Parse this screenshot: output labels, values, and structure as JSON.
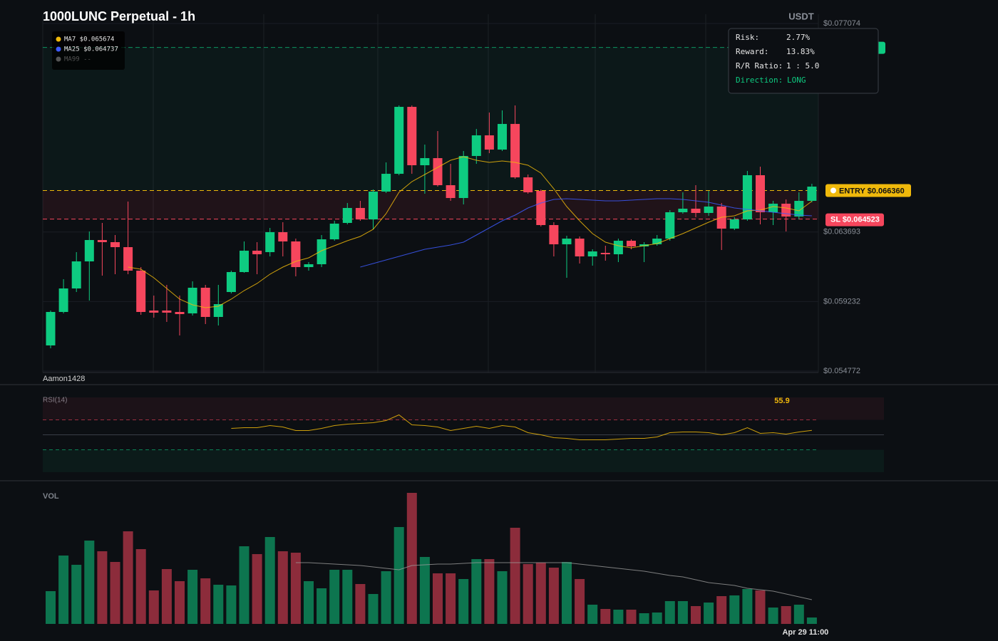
{
  "chart_data": [
    {
      "type": "candlestick",
      "title": "1000LUNC Perpetual - 1h",
      "currency": "USDT",
      "watermark": "Aamon1428",
      "categories": [
        null,
        null,
        null,
        null,
        null,
        null,
        null,
        null,
        null,
        null,
        null,
        null,
        null,
        null,
        null,
        null,
        null,
        null,
        null,
        null,
        null,
        null,
        null,
        null,
        null,
        null,
        null,
        null,
        null,
        null,
        null,
        null,
        null,
        null,
        null,
        null,
        null,
        null,
        null,
        null,
        null,
        null,
        null,
        null,
        null,
        null,
        null,
        null,
        null,
        null,
        null,
        null,
        null,
        null,
        null,
        null,
        null,
        null,
        null,
        "Apr 29 11:00"
      ],
      "open": [
        0.056417,
        0.058565,
        0.060073,
        0.06181,
        0.063181,
        0.063044,
        0.062724,
        0.061216,
        0.058657,
        0.058657,
        0.058565,
        0.058474,
        0.060119,
        0.058245,
        0.059845,
        0.061125,
        0.062496,
        0.062404,
        0.063684,
        0.06309,
        0.061444,
        0.061627,
        0.063227,
        0.064278,
        0.065238,
        0.064506,
        0.066289,
        0.067431,
        0.071727,
        0.06798,
        0.068437,
        0.0667,
        0.065877,
        0.068574,
        0.069899,
        0.068985,
        0.07063,
        0.067203,
        0.066334,
        0.064141,
        0.062907,
        0.063272,
        0.06213,
        0.062358,
        0.062267,
        0.063135,
        0.06277,
        0.062907,
        0.063272,
        0.064963,
        0.065192,
        0.064918,
        0.065329,
        0.063912,
        0.064506,
        0.06734,
        0.064963,
        0.065512,
        0.064689,
        0.065695
      ],
      "high": [
        0.058657,
        0.060668,
        0.062404,
        0.063729,
        0.064278,
        0.063501,
        0.065649,
        0.061444,
        0.059616,
        0.060302,
        0.059616,
        0.06053,
        0.060302,
        0.060302,
        0.061216,
        0.06309,
        0.063044,
        0.063958,
        0.064324,
        0.063272,
        0.061764,
        0.063501,
        0.064415,
        0.065557,
        0.065695,
        0.066426,
        0.068162,
        0.071818,
        0.071818,
        0.069305,
        0.070173,
        0.068071,
        0.068894,
        0.07031,
        0.071361,
        0.071498,
        0.071818,
        0.067385,
        0.066426,
        0.064324,
        0.063455,
        0.06341,
        0.062587,
        0.062815,
        0.063272,
        0.063227,
        0.063044,
        0.063501,
        0.0651,
        0.066243,
        0.0667,
        0.066334,
        0.065557,
        0.064643,
        0.067614,
        0.067888,
        0.065695,
        0.065786,
        0.066243,
        0.066791
      ],
      "low": [
        0.056235,
        0.058474,
        0.059845,
        0.059297,
        0.060896,
        0.060987,
        0.060987,
        0.058383,
        0.0582,
        0.057926,
        0.057057,
        0.058337,
        0.057788,
        0.057697,
        0.059754,
        0.061079,
        0.060987,
        0.06213,
        0.06213,
        0.06085,
        0.061216,
        0.061444,
        0.063135,
        0.064186,
        0.064415,
        0.063867,
        0.066197,
        0.06734,
        0.067431,
        0.066152,
        0.066609,
        0.065695,
        0.065466,
        0.068071,
        0.068756,
        0.068894,
        0.067111,
        0.066152,
        0.064049,
        0.06213,
        0.060759,
        0.061673,
        0.061536,
        0.061856,
        0.061764,
        0.062587,
        0.061764,
        0.062815,
        0.063135,
        0.064872,
        0.064643,
        0.064735,
        0.062541,
        0.063821,
        0.064415,
        0.064186,
        0.064141,
        0.063729,
        0.064506,
        0.065603
      ],
      "close": [
        0.058565,
        0.060073,
        0.06181,
        0.063181,
        0.063044,
        0.062724,
        0.061216,
        0.058565,
        0.05852,
        0.05852,
        0.058428,
        0.060119,
        0.058245,
        0.059068,
        0.061125,
        0.062496,
        0.062267,
        0.063684,
        0.06309,
        0.061444,
        0.061627,
        0.063227,
        0.064232,
        0.065238,
        0.064506,
        0.066289,
        0.067431,
        0.071727,
        0.06798,
        0.068437,
        0.0667,
        0.065877,
        0.068574,
        0.069899,
        0.068985,
        0.07063,
        0.067203,
        0.066243,
        0.064141,
        0.062907,
        0.063272,
        0.06213,
        0.06245,
        0.062267,
        0.063135,
        0.06277,
        0.062907,
        0.063272,
        0.064963,
        0.065192,
        0.064918,
        0.065329,
        0.063912,
        0.064506,
        0.06734,
        0.064963,
        0.065512,
        0.064689,
        0.065695,
        0.066609
      ],
      "up_color": "#0ecb81",
      "down_color": "#f6465d",
      "ylim": [
        0.05468,
        0.07767
      ],
      "yticks": [
        {
          "value": 0.077074,
          "label": "$0.077074"
        },
        {
          "value": 0.063693,
          "label": "$0.063693"
        },
        {
          "value": 0.059232,
          "label": "$0.059232"
        },
        {
          "value": 0.054772,
          "label": "$0.054772"
        }
      ],
      "ma": [
        {
          "name": "MA7 $0.065674",
          "color": "#f0b90b",
          "values": [
            null,
            null,
            null,
            null,
            null,
            null,
            0.061444,
            0.061307,
            0.060759,
            0.060073,
            0.059388,
            0.059022,
            0.05884,
            0.058931,
            0.059388,
            0.059936,
            0.060393,
            0.060987,
            0.061444,
            0.06181,
            0.062039,
            0.062496,
            0.062815,
            0.063135,
            0.06341,
            0.063867,
            0.064872,
            0.066243,
            0.066928,
            0.067385,
            0.067842,
            0.068299,
            0.068528,
            0.068299,
            0.068162,
            0.068254,
            0.068162,
            0.06798,
            0.067477,
            0.066471,
            0.065329,
            0.064415,
            0.063592,
            0.063044,
            0.062815,
            0.062678,
            0.062815,
            0.062953,
            0.063272,
            0.063592,
            0.063958,
            0.064324,
            0.064643,
            0.064735,
            0.065055,
            0.0651,
            0.065329,
            0.065238,
            0.065055,
            0.065674
          ]
        },
        {
          "name": "MA25 $0.064737",
          "color": "#3d5afe",
          "values": [
            null,
            null,
            null,
            null,
            null,
            null,
            null,
            null,
            null,
            null,
            null,
            null,
            null,
            null,
            null,
            null,
            null,
            null,
            null,
            null,
            null,
            null,
            null,
            null,
            0.061444,
            0.061673,
            0.061901,
            0.06213,
            0.062358,
            0.062587,
            0.062724,
            0.062861,
            0.063044,
            0.063501,
            0.063958,
            0.064415,
            0.064781,
            0.065238,
            0.065557,
            0.065786,
            0.065832,
            0.065786,
            0.06574,
            0.065695,
            0.065695,
            0.06574,
            0.065786,
            0.065832,
            0.065832,
            0.065786,
            0.065695,
            0.065603,
            0.06542,
            0.065238,
            0.065146,
            0.065055,
            0.064963,
            0.064872,
            0.064781,
            0.064737
          ]
        },
        {
          "name": "MA99 --",
          "color": "#555555"
        }
      ],
      "entry": {
        "value": 0.06636,
        "label": "ENTRY $0.066360"
      },
      "stop_loss": {
        "value": 0.064523,
        "label": "SL $0.064523"
      },
      "take_profit": 0.07554,
      "info": [
        {
          "label": "Risk:",
          "value": "2.77%"
        },
        {
          "label": "Reward:",
          "value": "13.83%"
        },
        {
          "label": "R/R Ratio:",
          "value": "1 : 5.0"
        },
        {
          "label": "Direction:",
          "value": "LONG"
        }
      ]
    },
    {
      "type": "line",
      "title": "RSI(14)",
      "color": "#f0b90b",
      "ylim": [
        0,
        100
      ],
      "levels": [
        30,
        50,
        70
      ],
      "values": [
        null,
        null,
        null,
        null,
        null,
        null,
        null,
        null,
        null,
        null,
        null,
        null,
        null,
        null,
        58.6,
        59.5,
        59.5,
        62.4,
        60.5,
        55.7,
        55.7,
        58.6,
        62.4,
        64.3,
        65.2,
        66.2,
        69.0,
        76.7,
        63.3,
        62.4,
        60.5,
        55.7,
        58.6,
        61.4,
        58.6,
        62.4,
        60.5,
        52.9,
        50.0,
        46.2,
        45.2,
        43.3,
        43.3,
        43.3,
        44.3,
        45.2,
        45.2,
        47.1,
        52.9,
        53.8,
        53.8,
        52.9,
        50.0,
        52.9,
        59.5,
        51.9,
        52.9,
        51.0,
        53.8,
        55.9
      ]
    },
    {
      "type": "bar",
      "title": "VOL",
      "ylim": [
        0,
        190
      ],
      "values": [
        46,
        96,
        83,
        117,
        102,
        87,
        130,
        105,
        47,
        77,
        60,
        76,
        64,
        55,
        54,
        109,
        98,
        122,
        102,
        100,
        60,
        50,
        76,
        76,
        56,
        42,
        74,
        136,
        184,
        94,
        71,
        71,
        63,
        91,
        91,
        74,
        135,
        84,
        86,
        79,
        87,
        63,
        27,
        21,
        20,
        20,
        15,
        16,
        32,
        32,
        25,
        30,
        39,
        40,
        49,
        47,
        23,
        25,
        27,
        9
      ],
      "ma": {
        "color": "#9a9a9a",
        "values": [
          null,
          null,
          null,
          null,
          null,
          null,
          null,
          null,
          null,
          null,
          null,
          null,
          null,
          null,
          null,
          null,
          null,
          null,
          null,
          86,
          86,
          85,
          84,
          83,
          82,
          80,
          78,
          76,
          82,
          83,
          84,
          84,
          85,
          86,
          86,
          86,
          86,
          86,
          86,
          86,
          86,
          84,
          82,
          80,
          78,
          76,
          74,
          71,
          68,
          66,
          62,
          58,
          56,
          54,
          50,
          48,
          46,
          42,
          38,
          34
        ]
      }
    }
  ]
}
